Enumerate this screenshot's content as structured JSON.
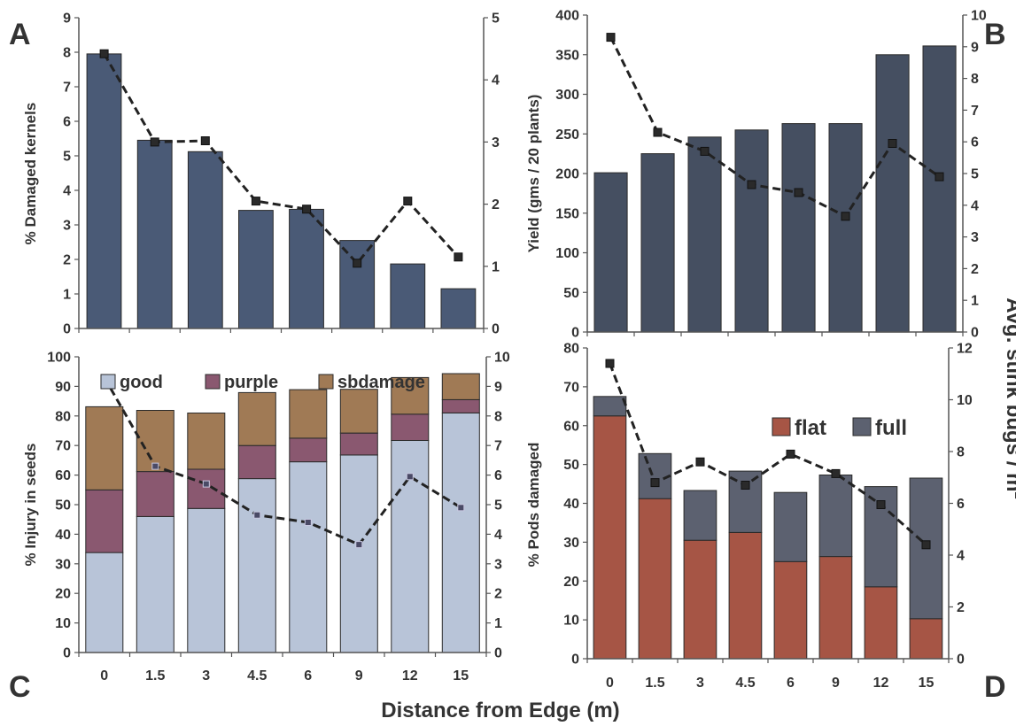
{
  "figure": {
    "shared_xlabel": "Distance from Edge (m)",
    "shared_right_ylabel": "Avg. stink bugs / m2",
    "colors": {
      "axis": "#555555",
      "text": "#333333",
      "line": "#222222"
    }
  },
  "chart_data": [
    {
      "panel": "A",
      "type": "bar",
      "categories": [
        "0",
        "1.5",
        "3",
        "4.5",
        "6",
        "9",
        "12",
        "15"
      ],
      "series": [
        {
          "values": [
            7.95,
            5.45,
            5.12,
            3.42,
            3.45,
            2.55,
            1.87,
            1.15
          ],
          "color": "#4a5a76",
          "axis": "left"
        },
        {
          "kind": "line",
          "values": [
            4.42,
            3.0,
            3.02,
            2.05,
            1.92,
            1.05,
            2.05,
            1.15
          ],
          "color": "#222222",
          "axis": "right"
        }
      ],
      "ylabel": "% Damaged  kernels",
      "ylim": [
        0,
        9
      ],
      "yticks": [
        0,
        1,
        2,
        3,
        4,
        5,
        6,
        7,
        8,
        9
      ],
      "y2lim": [
        0,
        5
      ],
      "y2ticks": [
        0,
        1,
        2,
        3,
        4,
        5
      ],
      "grid": false
    },
    {
      "panel": "B",
      "type": "bar",
      "categories": [
        "0",
        "1.5",
        "3",
        "4.5",
        "6",
        "9",
        "12",
        "15"
      ],
      "series": [
        {
          "values": [
            201,
            225,
            246,
            255,
            263,
            263,
            350,
            361
          ],
          "color": "#454f61",
          "axis": "left"
        },
        {
          "kind": "line",
          "values": [
            9.3,
            6.3,
            5.7,
            4.65,
            4.4,
            3.65,
            5.95,
            4.9
          ],
          "color": "#222222",
          "axis": "right"
        }
      ],
      "ylabel": "Yield (gms / 20 plants)",
      "ylim": [
        0,
        400
      ],
      "yticks": [
        0,
        50,
        100,
        150,
        200,
        250,
        300,
        350,
        400
      ],
      "y2lim": [
        0,
        10
      ],
      "y2ticks": [
        0,
        1,
        2,
        3,
        4,
        5,
        6,
        7,
        8,
        9,
        10
      ],
      "grid": false
    },
    {
      "panel": "C",
      "type": "bar",
      "stacked": true,
      "categories": [
        "0",
        "1.5",
        "3",
        "4.5",
        "6",
        "9",
        "12",
        "15"
      ],
      "series": [
        {
          "name": "good",
          "values": [
            33.8,
            46,
            48.7,
            58.8,
            64.5,
            66.8,
            71.7,
            81
          ],
          "color": "#b8c4d8",
          "axis": "left"
        },
        {
          "name": "purple",
          "values": [
            21.2,
            15.2,
            13.3,
            11.2,
            8.0,
            7.4,
            8.9,
            4.5
          ],
          "color": "#8a5870",
          "axis": "left"
        },
        {
          "name": "sbdamage",
          "values": [
            28.1,
            20.7,
            19.0,
            17.9,
            16.4,
            14.8,
            12.4,
            8.8
          ],
          "color": "#a07a55",
          "axis": "left"
        },
        {
          "kind": "line",
          "values": [
            9.3,
            6.3,
            5.7,
            4.65,
            4.4,
            3.65,
            5.95,
            4.9
          ],
          "color": "#222222",
          "axis": "right"
        }
      ],
      "ylabel": "% Injury in seeds",
      "ylim": [
        0,
        100
      ],
      "yticks": [
        0,
        10,
        20,
        30,
        40,
        50,
        60,
        70,
        80,
        90,
        100
      ],
      "y2lim": [
        0,
        10
      ],
      "y2ticks": [
        0,
        1,
        2,
        3,
        4,
        5,
        6,
        7,
        8,
        9,
        10
      ],
      "legend": "top",
      "grid": false
    },
    {
      "panel": "D",
      "type": "bar",
      "stacked": true,
      "categories": [
        "0",
        "1.5",
        "3",
        "4.5",
        "6",
        "9",
        "12",
        "15"
      ],
      "series": [
        {
          "name": "flat",
          "values": [
            62.5,
            41.2,
            30.5,
            32.5,
            25.0,
            26.3,
            18.5,
            10.3
          ],
          "color": "#a65545",
          "axis": "left"
        },
        {
          "name": "full",
          "values": [
            5.0,
            11.6,
            12.8,
            15.8,
            17.8,
            21.0,
            25.8,
            36.2
          ],
          "color": "#5c6170",
          "axis": "left"
        },
        {
          "kind": "line",
          "values": [
            11.4,
            6.8,
            7.6,
            6.7,
            7.9,
            7.15,
            5.95,
            4.4
          ],
          "color": "#222222",
          "axis": "right"
        }
      ],
      "ylabel": "% Pods damaged",
      "ylim": [
        0,
        80
      ],
      "yticks": [
        0,
        10,
        20,
        30,
        40,
        50,
        60,
        70,
        80
      ],
      "y2lim": [
        0,
        12
      ],
      "y2ticks": [
        0,
        2,
        4,
        6,
        8,
        10,
        12
      ],
      "legend": "top-right",
      "grid": false
    }
  ]
}
